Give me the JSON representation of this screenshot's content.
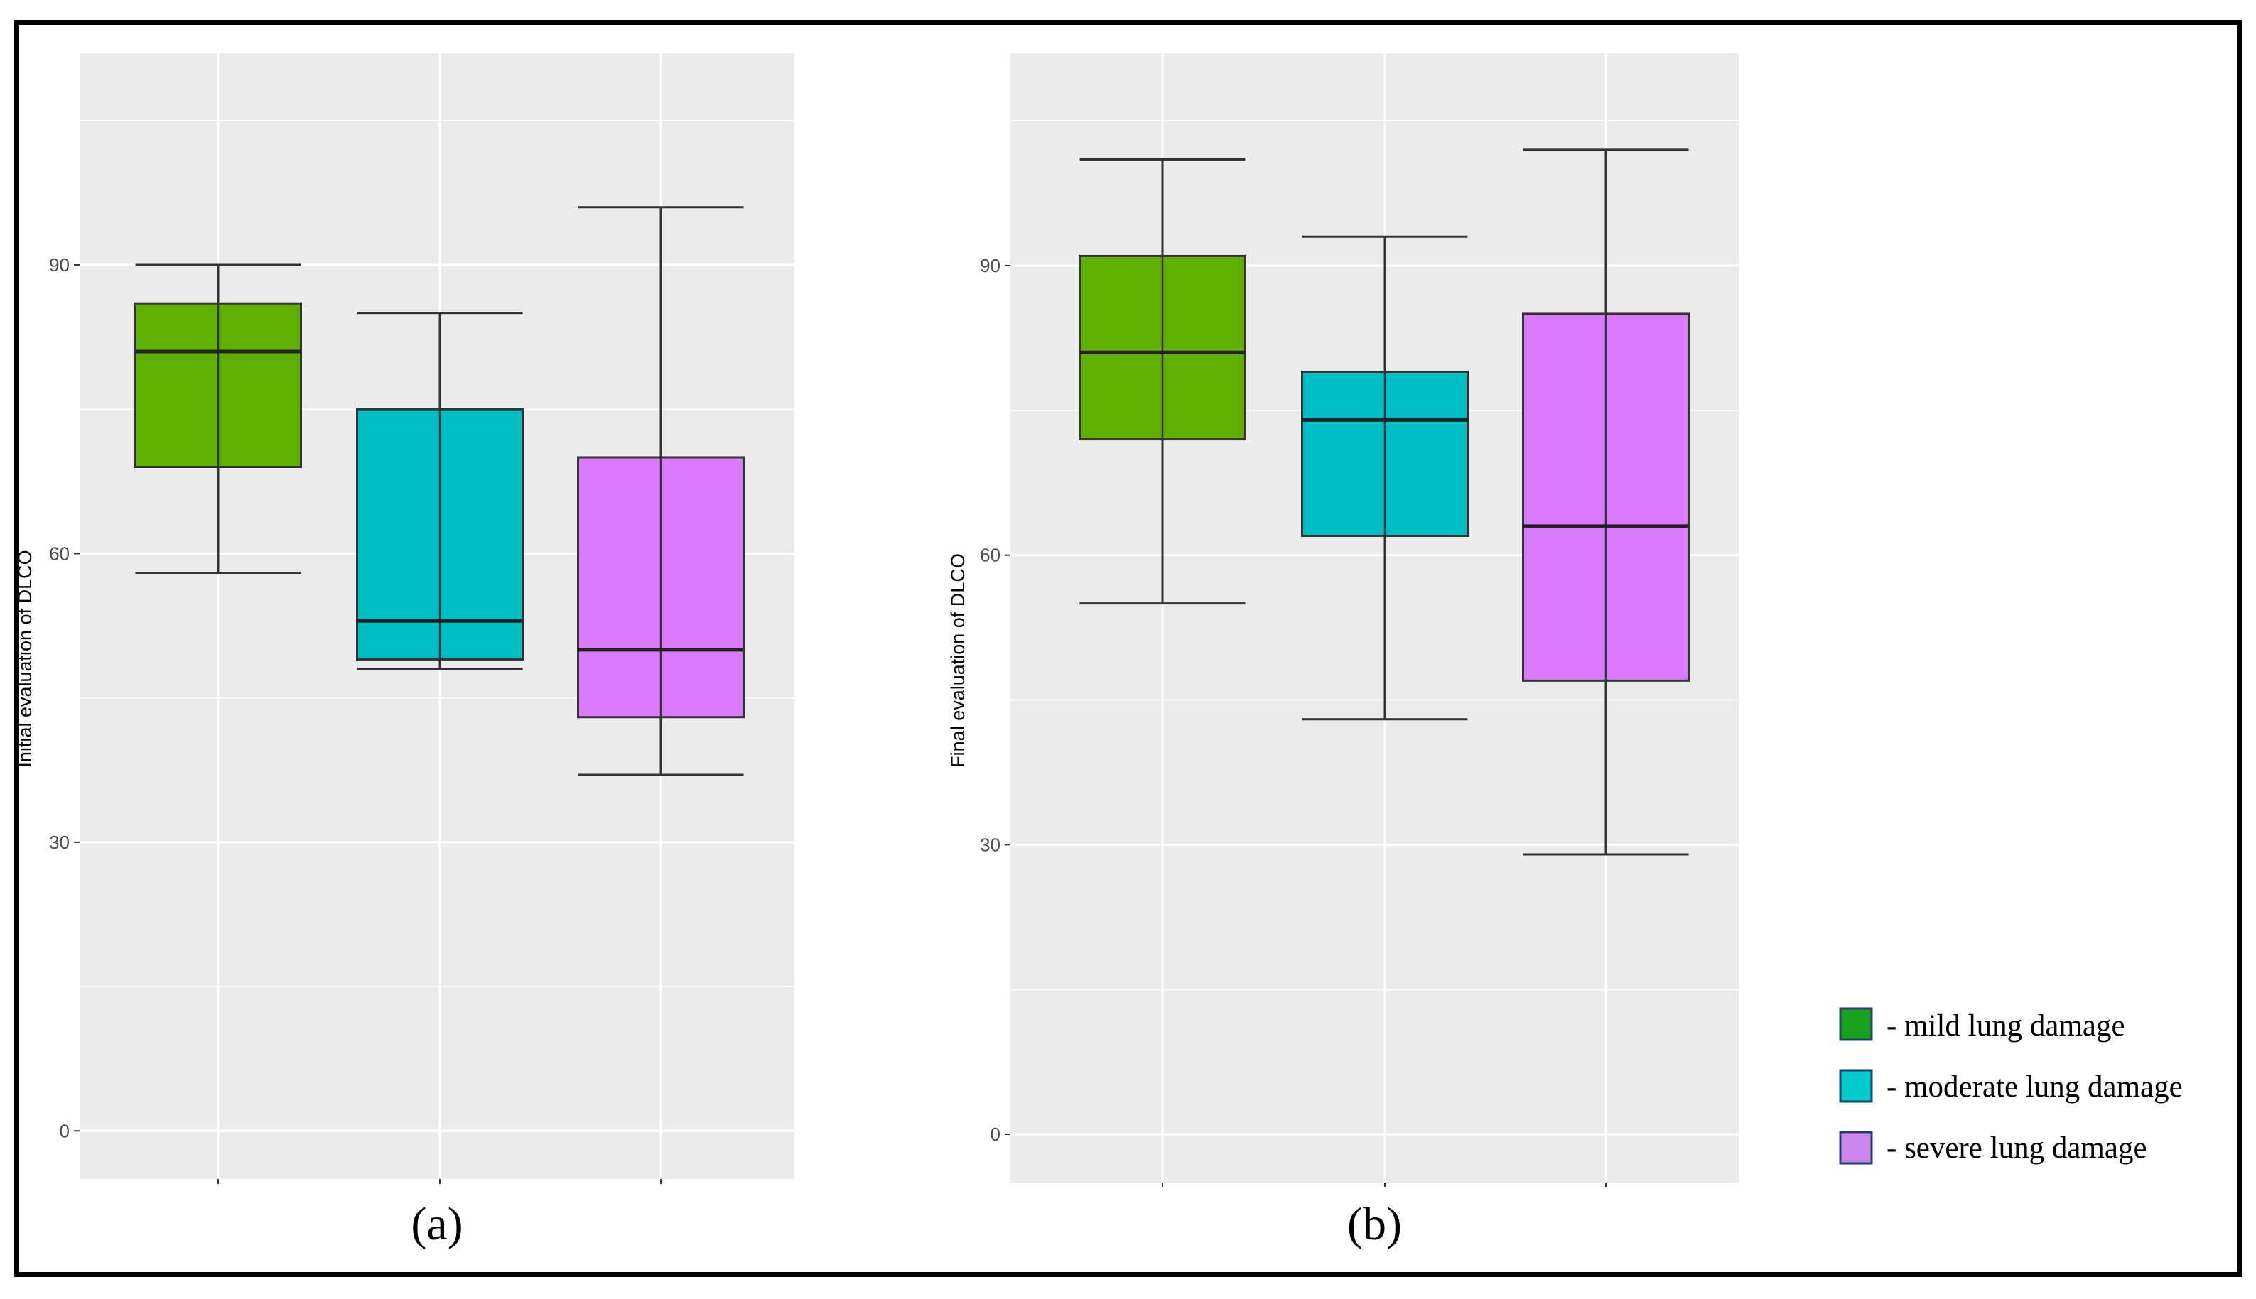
{
  "chart_data": [
    {
      "type": "box",
      "panel_label": "(a)",
      "title": "",
      "xlabel": "",
      "ylabel": "Initial evaluation of DLCO",
      "ylim": [
        -5,
        112
      ],
      "yticks": [
        0,
        30,
        60,
        90
      ],
      "yticklabels": [
        "0",
        "30",
        "60",
        "90"
      ],
      "series": [
        {
          "name": "mild lung damage",
          "color": "#5fae00",
          "whisker_low": 58,
          "q1": 69,
          "median": 81,
          "q3": 86,
          "whisker_high": 90
        },
        {
          "name": "moderate lung damage",
          "color": "#00bfc4",
          "whisker_low": 48,
          "q1": 49,
          "median": 53,
          "q3": 75,
          "whisker_high": 85
        },
        {
          "name": "severe lung damage",
          "color": "#da7bff",
          "whisker_low": 37,
          "q1": 43,
          "median": 50,
          "q3": 70,
          "whisker_high": 96
        }
      ]
    },
    {
      "type": "box",
      "panel_label": "(b)",
      "title": "",
      "xlabel": "",
      "ylabel": "Final evaluation of DLCO",
      "ylim": [
        -5,
        112
      ],
      "yticks": [
        0,
        30,
        60,
        90
      ],
      "yticklabels": [
        "0",
        "30",
        "60",
        "90"
      ],
      "series": [
        {
          "name": "mild lung damage",
          "color": "#5fae00",
          "whisker_low": 55,
          "q1": 72,
          "median": 81,
          "q3": 91,
          "whisker_high": 101
        },
        {
          "name": "moderate lung damage",
          "color": "#00bfc4",
          "whisker_low": 43,
          "q1": 62,
          "median": 74,
          "q3": 79,
          "whisker_high": 93
        },
        {
          "name": "severe lung damage",
          "color": "#da7bff",
          "whisker_low": 29,
          "q1": 47,
          "median": 63,
          "q3": 85,
          "whisker_high": 102
        }
      ]
    }
  ],
  "legend": {
    "items": [
      {
        "label": "- mild lung damage",
        "color": "#1aa01a"
      },
      {
        "label": "- moderate lung damage",
        "color": "#00cccc"
      },
      {
        "label": "- severe lung damage",
        "color": "#cc88ee"
      }
    ]
  },
  "colors": {
    "panel_bg": "#ebebeb",
    "grid": "#ffffff",
    "outline": "#333333"
  }
}
